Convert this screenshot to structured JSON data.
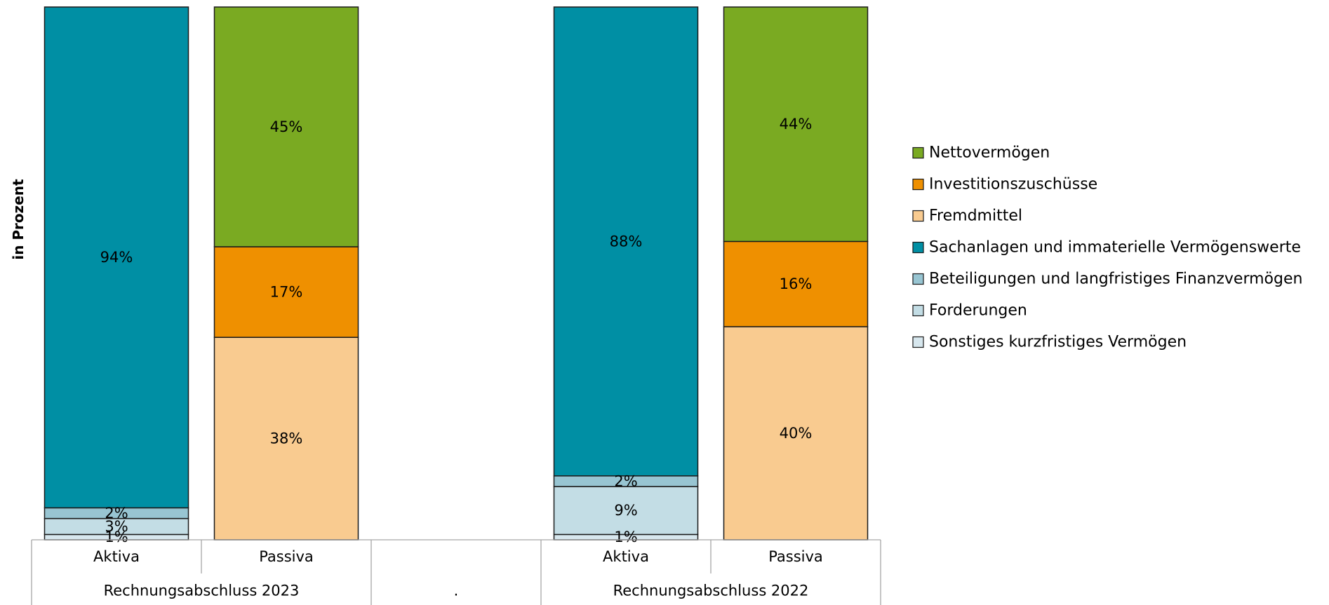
{
  "chart_data": {
    "type": "bar",
    "stacked": true,
    "ylabel": "in Prozent",
    "ylim": [
      0,
      100
    ],
    "grid": false,
    "legend_position": "right",
    "groups": [
      "Rechnungsabschluss 2023",
      ".",
      "Rechnungsabschluss 2022"
    ],
    "categories": [
      {
        "label": "Aktiva",
        "group": "Rechnungsabschluss 2023"
      },
      {
        "label": "Passiva",
        "group": "Rechnungsabschluss 2023"
      },
      {
        "label": "",
        "group": "."
      },
      {
        "label": "Aktiva",
        "group": "Rechnungsabschluss 2022"
      },
      {
        "label": "Passiva",
        "group": "Rechnungsabschluss 2022"
      }
    ],
    "series": [
      {
        "name": "Sonstiges kurzfristiges Vermögen",
        "color": "#d7e7ee",
        "values": [
          1,
          0,
          null,
          1,
          0
        ]
      },
      {
        "name": "Forderungen",
        "color": "#c3dde5",
        "values": [
          3,
          0,
          null,
          9,
          0
        ]
      },
      {
        "name": "Beteiligungen und langfristiges Finanzvermögen",
        "color": "#98c5d2",
        "values": [
          2,
          0,
          null,
          2,
          0
        ]
      },
      {
        "name": "Sachanlagen und immaterielle Vermögenswerte",
        "color": "#008fa4",
        "values": [
          94,
          0,
          null,
          88,
          0
        ]
      },
      {
        "name": "Fremdmittel",
        "color": "#f9cb90",
        "values": [
          0,
          38,
          null,
          0,
          40
        ]
      },
      {
        "name": "Investitionszuschüsse",
        "color": "#ef9000",
        "values": [
          0,
          17,
          null,
          0,
          16
        ]
      },
      {
        "name": "Nettovermögen",
        "color": "#7aaa22",
        "values": [
          0,
          45,
          null,
          0,
          44
        ]
      }
    ],
    "data_labels": [
      [
        "1%",
        "",
        "",
        "1%",
        ""
      ],
      [
        "3%",
        "",
        "",
        "9%",
        ""
      ],
      [
        "2%",
        "",
        "",
        "2%",
        ""
      ],
      [
        "94%",
        "",
        "",
        "88%",
        ""
      ],
      [
        "",
        "38%",
        "",
        "",
        "40%"
      ],
      [
        "",
        "17%",
        "",
        "",
        "16%"
      ],
      [
        "",
        "45%",
        "",
        "",
        "44%"
      ]
    ],
    "legend_order": [
      "Nettovermögen",
      "Investitionszuschüsse",
      "Fremdmittel",
      "Sachanlagen und immaterielle Vermögenswerte",
      "Beteiligungen und langfristiges Finanzvermögen",
      "Forderungen",
      "Sonstiges kurzfristiges Vermögen"
    ]
  }
}
